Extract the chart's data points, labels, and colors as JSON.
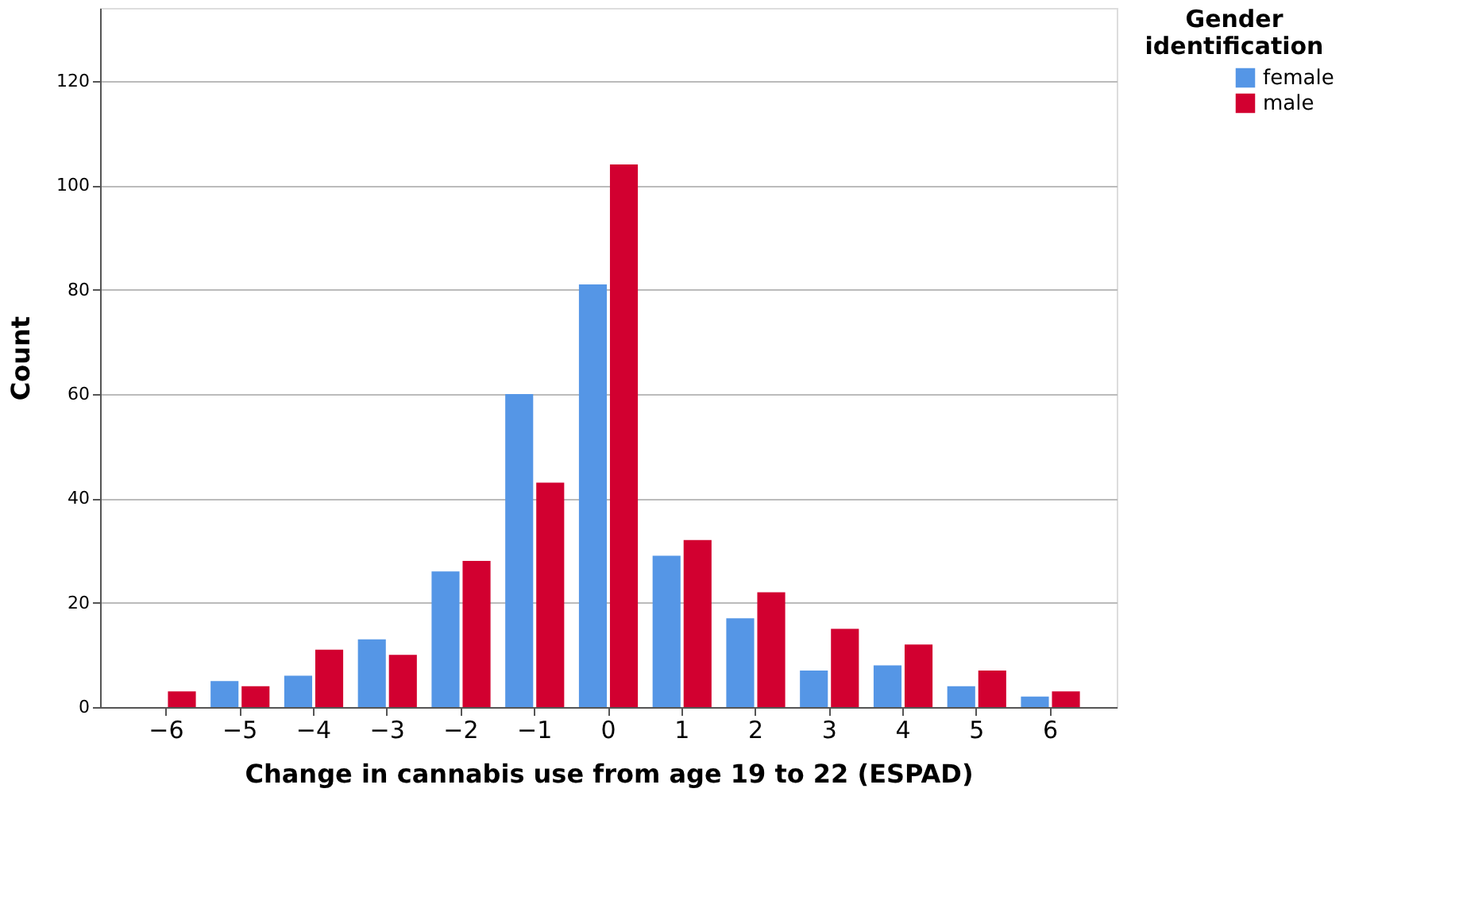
{
  "chart_data": {
    "type": "bar",
    "xlabel": "Change in cannabis use from age 19 to 22 (ESPAD)",
    "ylabel": "Count",
    "legend_title": "Gender identification",
    "categories": [
      "−6",
      "−5",
      "−4",
      "−3",
      "−2",
      "−1",
      "0",
      "1",
      "2",
      "3",
      "4",
      "5",
      "6"
    ],
    "series": [
      {
        "name": "female",
        "color": "#5596e6",
        "values": [
          null,
          5,
          6,
          13,
          26,
          60,
          81,
          29,
          17,
          7,
          8,
          4,
          2
        ]
      },
      {
        "name": "male",
        "color": "#d20030",
        "values": [
          3,
          4,
          11,
          10,
          28,
          43,
          104,
          32,
          22,
          15,
          12,
          7,
          3
        ]
      }
    ],
    "ylim": [
      0,
      134
    ],
    "yticks": [
      0,
      20,
      40,
      60,
      80,
      100,
      120
    ],
    "grid": "y",
    "legend": "top right"
  }
}
